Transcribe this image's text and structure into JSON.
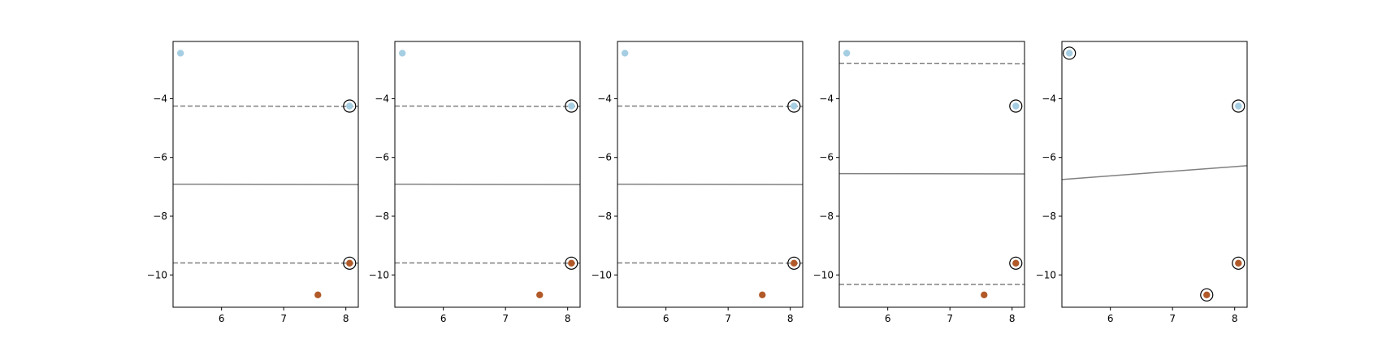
{
  "chart_data": [
    {
      "type": "scatter",
      "xlim": [
        5.22,
        8.2
      ],
      "ylim": [
        -11.1,
        -2.05
      ],
      "xticks": [
        6,
        7,
        8
      ],
      "yticks": [
        -10,
        -8,
        -6,
        -4
      ],
      "grid": false,
      "points": [
        {
          "x": 5.34,
          "y": -2.45,
          "class": 0
        },
        {
          "x": 8.06,
          "y": -4.25,
          "class": 0
        },
        {
          "x": 8.06,
          "y": -9.6,
          "class": 1
        },
        {
          "x": 7.55,
          "y": -10.68,
          "class": 1
        }
      ],
      "support_vectors": [
        {
          "x": 8.06,
          "y": -4.25
        },
        {
          "x": 8.06,
          "y": -9.6
        }
      ],
      "decision_boundary": {
        "x": [
          5.22,
          8.2
        ],
        "y": [
          -6.91,
          -6.92
        ]
      },
      "margins": [
        {
          "x": [
            5.22,
            8.2
          ],
          "y": [
            -4.25,
            -4.26
          ]
        },
        {
          "x": [
            5.22,
            8.2
          ],
          "y": [
            -9.59,
            -9.6
          ]
        }
      ]
    },
    {
      "type": "scatter",
      "xlim": [
        5.22,
        8.2
      ],
      "ylim": [
        -11.1,
        -2.05
      ],
      "xticks": [
        6,
        7,
        8
      ],
      "yticks": [
        -10,
        -8,
        -6,
        -4
      ],
      "grid": false,
      "points": [
        {
          "x": 5.34,
          "y": -2.45,
          "class": 0
        },
        {
          "x": 8.06,
          "y": -4.25,
          "class": 0
        },
        {
          "x": 8.06,
          "y": -9.6,
          "class": 1
        },
        {
          "x": 7.55,
          "y": -10.68,
          "class": 1
        }
      ],
      "support_vectors": [
        {
          "x": 8.06,
          "y": -4.25
        },
        {
          "x": 8.06,
          "y": -9.6
        }
      ],
      "decision_boundary": {
        "x": [
          5.22,
          8.2
        ],
        "y": [
          -6.91,
          -6.92
        ]
      },
      "margins": [
        {
          "x": [
            5.22,
            8.2
          ],
          "y": [
            -4.25,
            -4.26
          ]
        },
        {
          "x": [
            5.22,
            8.2
          ],
          "y": [
            -9.59,
            -9.6
          ]
        }
      ]
    },
    {
      "type": "scatter",
      "xlim": [
        5.22,
        8.2
      ],
      "ylim": [
        -11.1,
        -2.05
      ],
      "xticks": [
        6,
        7,
        8
      ],
      "yticks": [
        -10,
        -8,
        -6,
        -4
      ],
      "grid": false,
      "points": [
        {
          "x": 5.34,
          "y": -2.45,
          "class": 0
        },
        {
          "x": 8.06,
          "y": -4.25,
          "class": 0
        },
        {
          "x": 8.06,
          "y": -9.6,
          "class": 1
        },
        {
          "x": 7.55,
          "y": -10.68,
          "class": 1
        }
      ],
      "support_vectors": [
        {
          "x": 8.06,
          "y": -4.25
        },
        {
          "x": 8.06,
          "y": -9.6
        }
      ],
      "decision_boundary": {
        "x": [
          5.22,
          8.2
        ],
        "y": [
          -6.91,
          -6.92
        ]
      },
      "margins": [
        {
          "x": [
            5.22,
            8.2
          ],
          "y": [
            -4.25,
            -4.26
          ]
        },
        {
          "x": [
            5.22,
            8.2
          ],
          "y": [
            -9.59,
            -9.6
          ]
        }
      ]
    },
    {
      "type": "scatter",
      "xlim": [
        5.22,
        8.2
      ],
      "ylim": [
        -11.1,
        -2.05
      ],
      "xticks": [
        6,
        7,
        8
      ],
      "yticks": [
        -10,
        -8,
        -6,
        -4
      ],
      "grid": false,
      "points": [
        {
          "x": 5.34,
          "y": -2.45,
          "class": 0
        },
        {
          "x": 8.06,
          "y": -4.25,
          "class": 0
        },
        {
          "x": 8.06,
          "y": -9.6,
          "class": 1
        },
        {
          "x": 7.55,
          "y": -10.68,
          "class": 1
        }
      ],
      "support_vectors": [
        {
          "x": 8.06,
          "y": -4.25
        },
        {
          "x": 8.06,
          "y": -9.6
        }
      ],
      "decision_boundary": {
        "x": [
          5.22,
          8.2
        ],
        "y": [
          -6.55,
          -6.56
        ]
      },
      "margins": [
        {
          "x": [
            5.22,
            8.2
          ],
          "y": [
            -2.8,
            -2.81
          ]
        },
        {
          "x": [
            5.22,
            8.2
          ],
          "y": [
            -10.32,
            -10.32
          ]
        }
      ]
    },
    {
      "type": "scatter",
      "xlim": [
        5.22,
        8.2
      ],
      "ylim": [
        -11.1,
        -2.05
      ],
      "xticks": [
        6,
        7,
        8
      ],
      "yticks": [
        -10,
        -8,
        -6,
        -4
      ],
      "grid": false,
      "points": [
        {
          "x": 5.34,
          "y": -2.45,
          "class": 0
        },
        {
          "x": 8.06,
          "y": -4.25,
          "class": 0
        },
        {
          "x": 8.06,
          "y": -9.6,
          "class": 1
        },
        {
          "x": 7.55,
          "y": -10.68,
          "class": 1
        }
      ],
      "support_vectors": [
        {
          "x": 5.34,
          "y": -2.45
        },
        {
          "x": 8.06,
          "y": -4.25
        },
        {
          "x": 8.06,
          "y": -9.6
        },
        {
          "x": 7.55,
          "y": -10.68
        }
      ],
      "decision_boundary": {
        "x": [
          5.22,
          8.2
        ],
        "y": [
          -6.75,
          -6.28
        ]
      },
      "margins": []
    }
  ],
  "colors": {
    "class_0": "#a6cee3",
    "class_1": "#b15928",
    "boundary": "#808080",
    "axes": "#000000"
  }
}
